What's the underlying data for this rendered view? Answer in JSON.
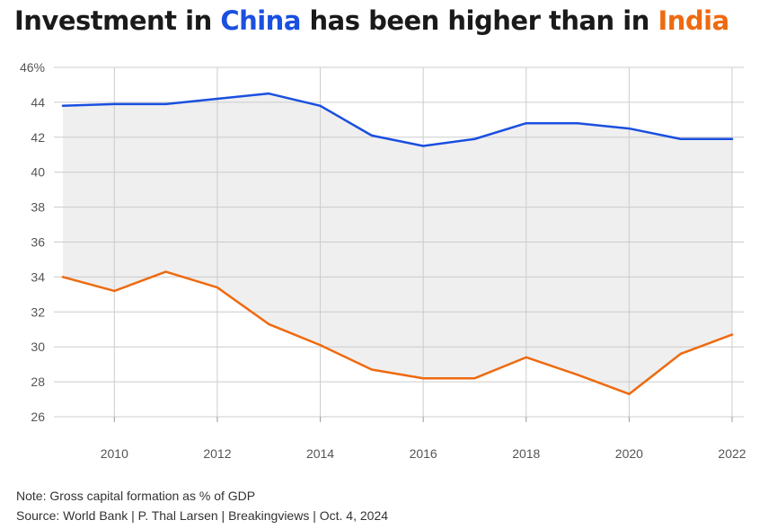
{
  "title": {
    "part1": "Investment in ",
    "china": "China",
    "part2": " has been higher than in ",
    "india": "India"
  },
  "colors": {
    "china": "#1a4fe0",
    "india": "#ee6a10",
    "band": "#efefef",
    "grid": "#cccccc"
  },
  "chart_data": {
    "type": "line",
    "title": "Investment in China has been higher than in India",
    "x": [
      2009,
      2010,
      2011,
      2012,
      2013,
      2014,
      2015,
      2016,
      2017,
      2018,
      2019,
      2020,
      2021,
      2022
    ],
    "series": [
      {
        "name": "China",
        "values": [
          43.8,
          43.9,
          43.9,
          44.2,
          44.5,
          43.8,
          42.1,
          41.5,
          41.9,
          42.8,
          42.8,
          42.5,
          41.9,
          41.9
        ]
      },
      {
        "name": "India",
        "values": [
          34.0,
          33.2,
          34.3,
          33.4,
          31.3,
          30.1,
          28.7,
          28.2,
          28.2,
          29.4,
          28.4,
          27.3,
          29.6,
          30.7
        ]
      }
    ],
    "xlim": [
      2009,
      2022
    ],
    "ylim": [
      26,
      46
    ],
    "y_ticks": [
      "46%",
      "44",
      "42",
      "40",
      "38",
      "36",
      "34",
      "32",
      "30",
      "28",
      "26"
    ],
    "x_ticks": [
      "2010",
      "2012",
      "2014",
      "2016",
      "2018",
      "2020",
      "2022"
    ],
    "grid": true,
    "shaded_between_series": true,
    "xlabel": "",
    "ylabel": ""
  },
  "footer": {
    "note": "Note: Gross capital formation as % of GDP",
    "source": "Source: World Bank | P. Thal Larsen | Breakingviews | Oct. 4, 2024"
  }
}
